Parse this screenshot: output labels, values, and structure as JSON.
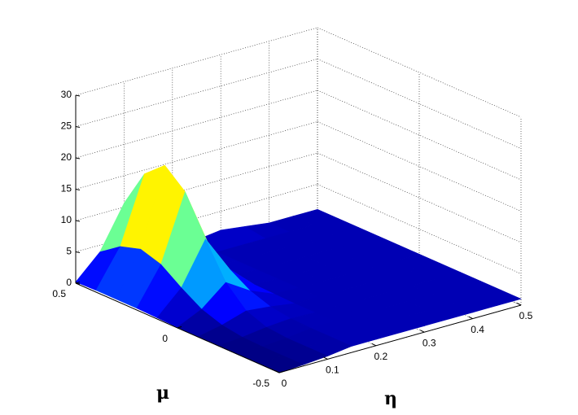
{
  "chart_data": {
    "type": "surface",
    "x_label": "η",
    "y_label": "μ",
    "x": [
      0,
      0.05,
      0.1,
      0.15,
      0.2,
      0.25,
      0.3,
      0.35,
      0.4,
      0.45,
      0.5
    ],
    "y": [
      -0.5,
      -0.4,
      -0.3,
      -0.2,
      -0.1,
      0,
      0.1,
      0.2,
      0.3,
      0.4,
      0.5
    ],
    "z": [
      [
        0,
        0.2,
        0.5,
        1,
        1,
        1,
        1,
        1,
        1,
        1,
        1
      ],
      [
        0,
        0.2,
        0.5,
        1,
        1,
        1,
        1,
        1,
        1,
        1,
        1
      ],
      [
        0,
        0.2,
        0.5,
        1,
        1,
        1,
        1,
        1,
        1,
        1,
        1
      ],
      [
        0,
        0.3,
        0.8,
        1.1,
        1,
        1,
        1,
        1,
        1,
        1,
        1
      ],
      [
        0,
        0.8,
        2,
        1.6,
        1,
        1,
        1,
        1,
        1,
        1,
        1
      ],
      [
        0.1,
        1.9,
        5.1,
        2.7,
        1.1,
        1,
        1,
        1,
        1,
        1,
        1
      ],
      [
        0.2,
        3.9,
        10.6,
        4.7,
        1.2,
        1,
        1,
        1,
        1,
        1,
        1
      ],
      [
        0.3,
        6.2,
        16.7,
        7,
        1.3,
        1,
        1,
        1,
        1,
        1,
        1
      ],
      [
        0.3,
        7.2,
        19.5,
        8,
        1.3,
        1,
        1,
        1,
        1,
        1,
        1
      ],
      [
        0.3,
        6.2,
        16.7,
        7,
        1.3,
        1,
        1,
        1,
        1,
        1,
        1
      ],
      [
        0.2,
        3.9,
        10.6,
        4.7,
        1.2,
        1.5,
        2,
        1.5,
        1,
        1,
        1
      ]
    ],
    "xlim": [
      0,
      0.5
    ],
    "ylim": [
      -0.5,
      0.5
    ],
    "zlim": [
      0,
      30
    ],
    "xticks": [
      0,
      0.1,
      0.2,
      0.3,
      0.4,
      0.5
    ],
    "yticks": [
      -0.5,
      0,
      0.5
    ],
    "zticks": [
      0,
      5,
      10,
      15,
      20,
      25,
      30
    ],
    "colormap": "jet",
    "grid": true
  }
}
